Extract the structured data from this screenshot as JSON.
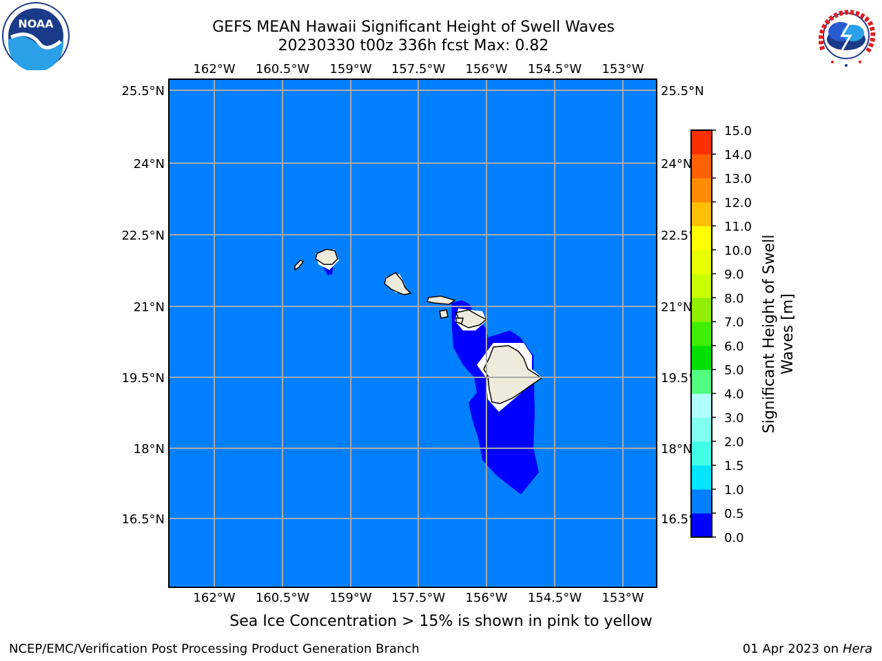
{
  "title_line1": "GEFS MEAN Hawaii Significant Height of Swell Waves",
  "title_line2": "20230330 t00z 336h fcst   Max: 0.82",
  "lon_labels": [
    "162°W",
    "160.5°W",
    "159°W",
    "157.5°W",
    "156°W",
    "154.5°W",
    "153°W"
  ],
  "lat_labels": [
    "25.5°N",
    "24°N",
    "22.5°N",
    "21°N",
    "19.5°N",
    "18°N",
    "16.5°N"
  ],
  "colorbar": {
    "label_line1": "Significant Height of Swell",
    "label_line2": "Waves [m]",
    "ticks": [
      "0.0",
      "0.5",
      "1.0",
      "1.5",
      "2.0",
      "3.0",
      "4.0",
      "5.0",
      "6.0",
      "7.0",
      "8.0",
      "9.0",
      "10.0",
      "11.0",
      "12.0",
      "13.0",
      "14.0",
      "15.0"
    ],
    "colors": [
      "#0000ff",
      "#0080ff",
      "#00e5ff",
      "#40ffe6",
      "#80fff0",
      "#b0ffff",
      "#50ff80",
      "#00e000",
      "#40ee00",
      "#90f000",
      "#c8ff00",
      "#e8ff00",
      "#ffff00",
      "#ffc000",
      "#ff8c00",
      "#ff6000",
      "#ff3000",
      "#ff0000"
    ]
  },
  "map_colors": {
    "ocean": "#0080ff",
    "low_band": "#0000ff",
    "land": "#eeebdc",
    "mask": "#ffffff",
    "grid": "#aaaaaa"
  },
  "logos": {
    "noaa_text": "NOAA",
    "nws_text": "NATIONAL WEATHER SERVICE"
  },
  "subtitle": "Sea Ice Concentration > 15% is shown in pink to yellow",
  "footer_left": "NCEP/EMC/Verification Post Processing Product Generation Branch",
  "footer_right_date": "01 Apr 2023 on ",
  "footer_right_host": "Hera"
}
